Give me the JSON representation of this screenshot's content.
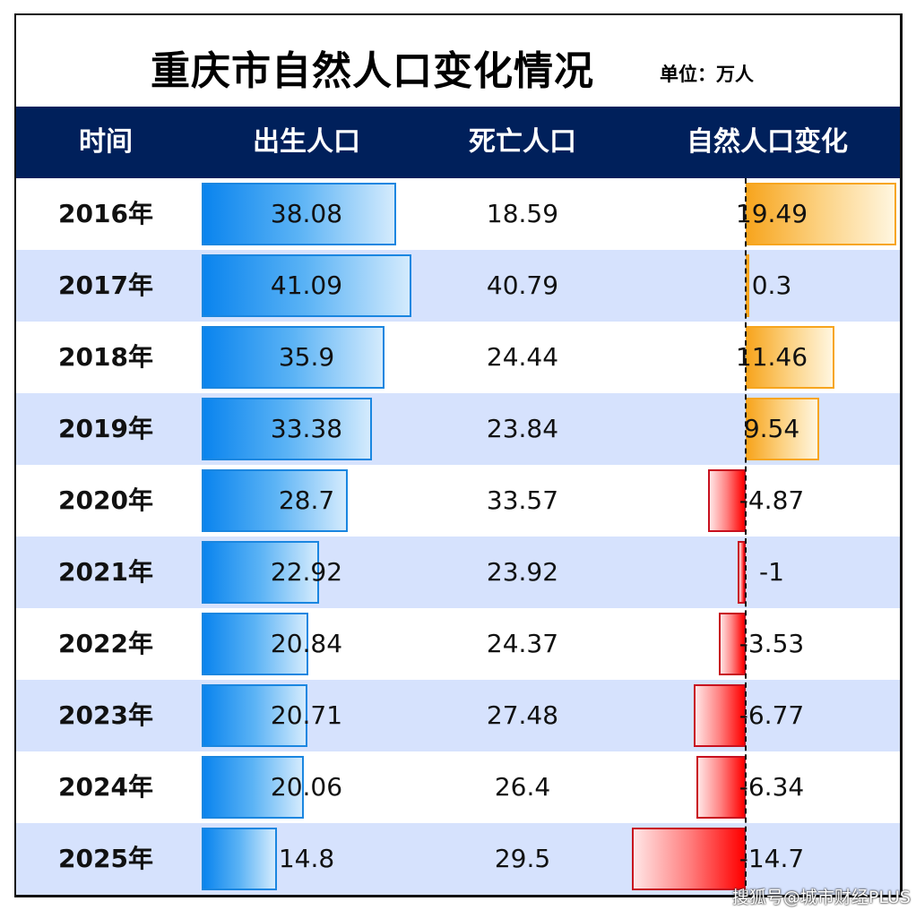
{
  "title": "重庆市自然人口变化情况",
  "unit": "单位：万人",
  "columns": [
    "时间",
    "出生人口",
    "死亡人口",
    "自然人口变化"
  ],
  "watermark": "搜狐号@城市财经PLUS",
  "colors": {
    "header_bg": "#00205B",
    "alt_row_bg": "#D6E2FD",
    "birth_bar": "#0A84EE",
    "natural_positive": "#F7A51E",
    "natural_negative": "#FF0000"
  },
  "chart_data": {
    "type": "table",
    "categories": [
      "2016年",
      "2017年",
      "2018年",
      "2019年",
      "2020年",
      "2021年",
      "2022年",
      "2023年",
      "2024年",
      "2025年"
    ],
    "series": [
      {
        "name": "出生人口",
        "values": [
          38.08,
          41.09,
          35.9,
          33.38,
          28.7,
          22.92,
          20.84,
          20.71,
          20.06,
          14.8
        ]
      },
      {
        "name": "死亡人口",
        "values": [
          18.59,
          40.79,
          24.44,
          23.84,
          33.57,
          23.92,
          24.37,
          27.48,
          26.4,
          29.5
        ]
      },
      {
        "name": "自然人口变化",
        "values": [
          19.49,
          0.3,
          11.46,
          9.54,
          -4.87,
          -1,
          -3.53,
          -6.77,
          -6.34,
          -14.7
        ]
      }
    ]
  },
  "rows": [
    {
      "year": "2016年",
      "birth": "38.08",
      "death": "18.59",
      "natural": "19.49"
    },
    {
      "year": "2017年",
      "birth": "41.09",
      "death": "40.79",
      "natural": "0.3"
    },
    {
      "year": "2018年",
      "birth": "35.9",
      "death": "24.44",
      "natural": "11.46"
    },
    {
      "year": "2019年",
      "birth": "33.38",
      "death": "23.84",
      "natural": "9.54"
    },
    {
      "year": "2020年",
      "birth": "28.7",
      "death": "33.57",
      "natural": "-4.87"
    },
    {
      "year": "2021年",
      "birth": "22.92",
      "death": "23.92",
      "natural": "-1"
    },
    {
      "year": "2022年",
      "birth": "20.84",
      "death": "24.37",
      "natural": "-3.53"
    },
    {
      "year": "2023年",
      "birth": "20.71",
      "death": "27.48",
      "natural": "-6.77"
    },
    {
      "year": "2024年",
      "birth": "20.06",
      "death": "26.4",
      "natural": "-6.34"
    },
    {
      "year": "2025年",
      "birth": "14.8",
      "death": "29.5",
      "natural": "-14.7"
    }
  ]
}
